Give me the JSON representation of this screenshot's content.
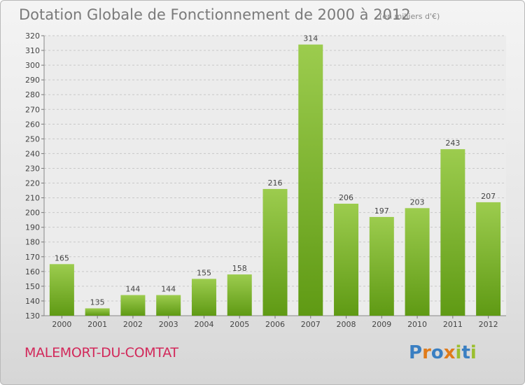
{
  "header": {
    "title": "Dotation Globale de Fonctionnement de 2000 à 2012",
    "subtitle": "(en milliers d'€)"
  },
  "footer": {
    "place": "MALEMORT-DU-COMTAT",
    "logo": "Proxiti"
  },
  "colors": {
    "bar_top": "#9ccc4e",
    "bar_bottom": "#5f9a14",
    "place_text": "#d2285a",
    "logo_letters": [
      "#3a7fc2",
      "#e07b1a",
      "#3a7fc2",
      "#e07b1a",
      "#9bbf2f",
      "#3a7fc2",
      "#9bbf2f"
    ]
  },
  "chart_data": {
    "type": "bar",
    "categories": [
      "2000",
      "2001",
      "2002",
      "2003",
      "2004",
      "2005",
      "2006",
      "2007",
      "2008",
      "2009",
      "2010",
      "2011",
      "2012"
    ],
    "values": [
      165,
      135,
      144,
      144,
      155,
      158,
      216,
      314,
      206,
      197,
      203,
      243,
      207
    ],
    "ylim": [
      130,
      320
    ],
    "yticks": [
      130,
      140,
      150,
      160,
      170,
      180,
      190,
      200,
      210,
      220,
      230,
      240,
      250,
      260,
      270,
      280,
      290,
      300,
      310,
      320
    ],
    "grid": true,
    "legend": "none"
  }
}
